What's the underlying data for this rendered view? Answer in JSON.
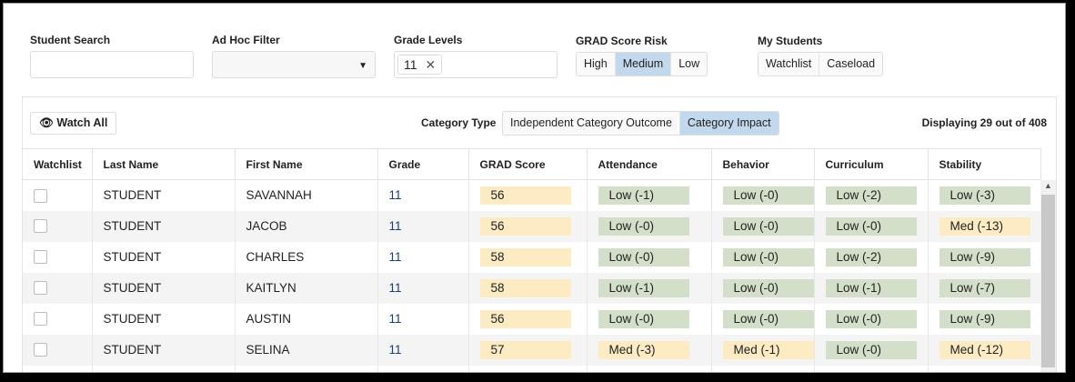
{
  "filters": {
    "student_search": {
      "label": "Student Search",
      "value": ""
    },
    "ad_hoc_filter": {
      "label": "Ad Hoc Filter",
      "value": ""
    },
    "grade_levels": {
      "label": "Grade Levels",
      "chips": [
        "11"
      ]
    },
    "grad_score_risk": {
      "label": "GRAD Score Risk",
      "options": [
        "High",
        "Medium",
        "Low"
      ],
      "selected": "Medium"
    },
    "my_students": {
      "label": "My Students",
      "options": [
        "Watchlist",
        "Caseload"
      ]
    }
  },
  "toolbar": {
    "watch_all": "Watch All",
    "category_type_label": "Category Type",
    "category_options": [
      "Independent Category Outcome",
      "Category Impact"
    ],
    "category_selected": "Category Impact",
    "displaying": "Displaying 29 out of 408"
  },
  "colors": {
    "medium": "#fcebc3",
    "low": "#d3dfc8",
    "selected": "#c2d8ec"
  },
  "table": {
    "columns": [
      "Watchlist",
      "Last Name",
      "First Name",
      "Grade",
      "GRAD Score",
      "Attendance",
      "Behavior",
      "Curriculum",
      "Stability"
    ],
    "rows": [
      {
        "last": "STUDENT",
        "first": "SAVANNAH",
        "grade": "11",
        "score": "56",
        "att": "Low (-1)",
        "beh": "Low (-0)",
        "cur": "Low (-2)",
        "stab": "Low (-3)"
      },
      {
        "last": "STUDENT",
        "first": "JACOB",
        "grade": "11",
        "score": "56",
        "att": "Low (-0)",
        "beh": "Low (-0)",
        "cur": "Low (-0)",
        "stab": "Med (-13)"
      },
      {
        "last": "STUDENT",
        "first": "CHARLES",
        "grade": "11",
        "score": "58",
        "att": "Low (-0)",
        "beh": "Low (-0)",
        "cur": "Low (-2)",
        "stab": "Low (-9)"
      },
      {
        "last": "STUDENT",
        "first": "KAITLYN",
        "grade": "11",
        "score": "58",
        "att": "Low (-1)",
        "beh": "Low (-0)",
        "cur": "Low (-1)",
        "stab": "Low (-7)"
      },
      {
        "last": "STUDENT",
        "first": "AUSTIN",
        "grade": "11",
        "score": "56",
        "att": "Low (-0)",
        "beh": "Low (-0)",
        "cur": "Low (-0)",
        "stab": "Low (-9)"
      },
      {
        "last": "STUDENT",
        "first": "SELINA",
        "grade": "11",
        "score": "57",
        "att": "Med (-3)",
        "beh": "Med (-1)",
        "cur": "Low (-0)",
        "stab": "Med (-12)"
      }
    ]
  }
}
